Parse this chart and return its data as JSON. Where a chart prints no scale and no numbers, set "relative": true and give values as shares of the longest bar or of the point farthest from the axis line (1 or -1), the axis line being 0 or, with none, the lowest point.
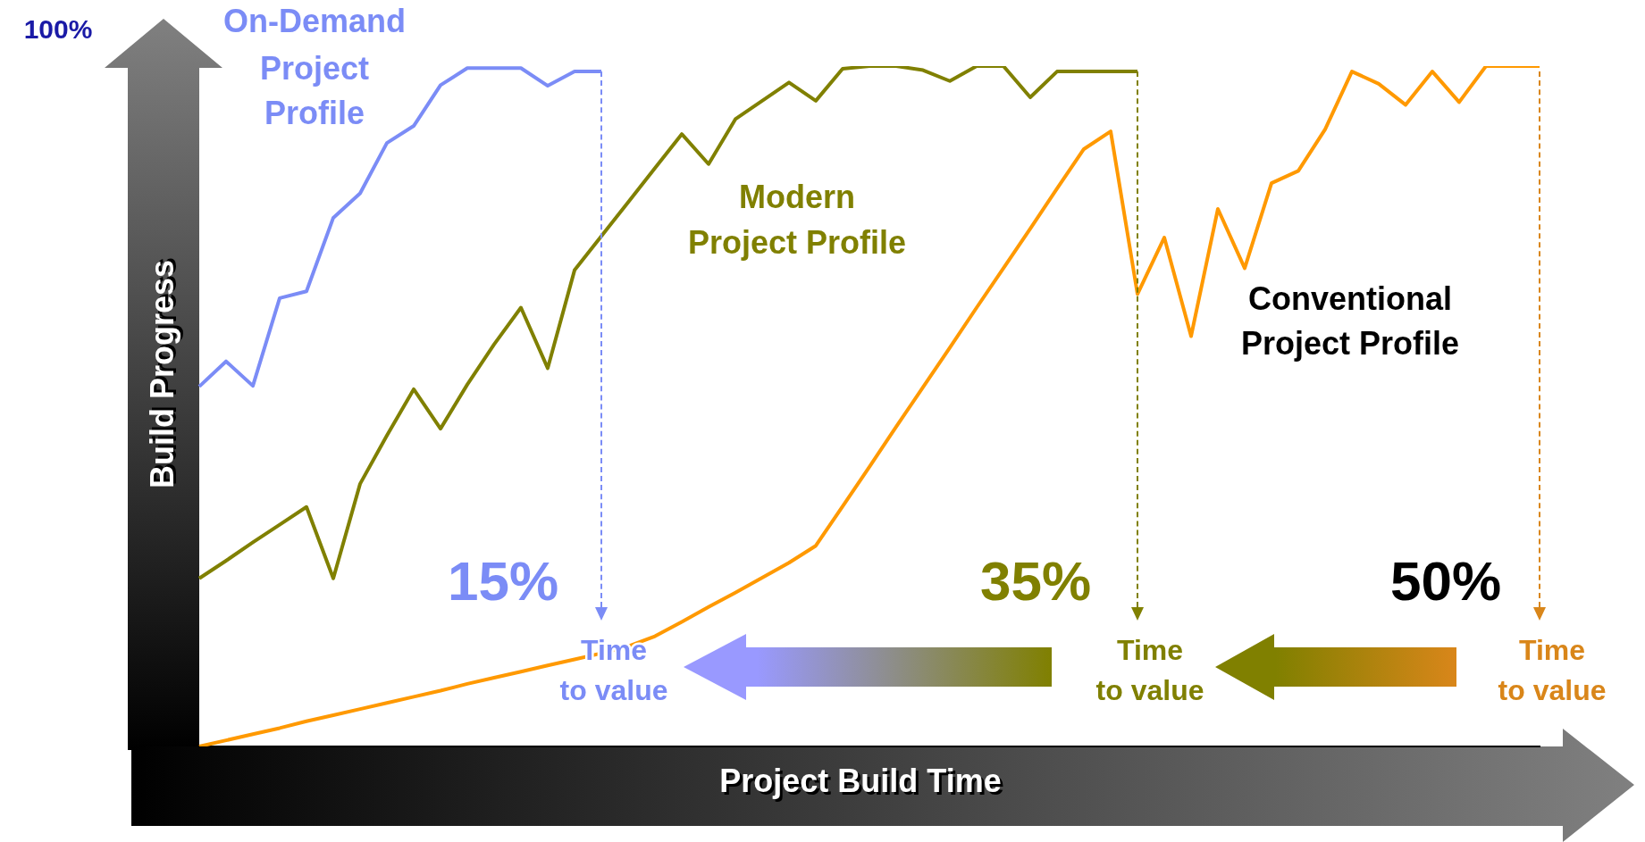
{
  "chart_data": {
    "type": "line",
    "relative": true,
    "xlabel": "Project Build Time",
    "ylabel": "Build Progress",
    "legend": false,
    "marker": "none",
    "line_style": "solid",
    "annotations": [
      "100%",
      "15%",
      "35%",
      "50%",
      "Time to value",
      "Time to value",
      "Time to value"
    ],
    "categories": [
      null,
      null,
      null,
      null,
      null,
      null,
      null,
      null,
      null,
      null,
      null,
      null,
      null,
      null,
      null,
      null,
      null,
      null,
      null,
      null,
      null,
      null,
      null,
      null,
      null,
      null,
      null,
      null,
      null,
      null,
      null,
      null,
      null,
      null,
      null,
      null,
      null,
      null,
      null,
      null,
      null,
      null,
      null,
      null,
      null,
      null,
      null,
      null,
      null,
      null,
      null
    ],
    "series": [
      {
        "name": "On-Demand Project Profile",
        "color": "#7b8cf6",
        "values": [
          0.529,
          0.566,
          0.53,
          0.659,
          0.669,
          0.777,
          0.813,
          0.887,
          0.912,
          0.972,
          0.997,
          0.997,
          0.997,
          0.971,
          0.992,
          0.992,
          null,
          null,
          null,
          null,
          null,
          null,
          null,
          null,
          null,
          null,
          null,
          null,
          null,
          null,
          null,
          null,
          null,
          null,
          null,
          null,
          null,
          null,
          null,
          null,
          null,
          null,
          null,
          null,
          null,
          null,
          null,
          null,
          null,
          null,
          null
        ]
      },
      {
        "name": "Modern Project Profile",
        "color": "#808000",
        "values": [
          0.247,
          0.273,
          0.3,
          0.326,
          0.352,
          0.247,
          0.386,
          0.457,
          0.525,
          0.467,
          0.532,
          0.591,
          0.645,
          0.556,
          0.7,
          0.75,
          0.8,
          0.85,
          0.9,
          0.856,
          0.922,
          0.949,
          0.976,
          0.949,
          0.996,
          1,
          1,
          0.994,
          0.978,
          1,
          1,
          0.954,
          0.992,
          0.992,
          0.992,
          0.992,
          null,
          null,
          null,
          null,
          null,
          null,
          null,
          null,
          null,
          null,
          null,
          null,
          null,
          null,
          null
        ]
      },
      {
        "name": "Conventional Project Profile",
        "color": "#ff9900",
        "values": [
          0,
          0.009,
          0.018,
          0.027,
          0.037,
          0.046,
          0.055,
          0.064,
          0.073,
          0.082,
          0.092,
          0.101,
          0.11,
          0.119,
          0.128,
          0.137,
          0.147,
          0.162,
          0.183,
          0.205,
          0.226,
          0.248,
          0.27,
          0.295,
          0.353,
          0.411,
          0.47,
          0.528,
          0.586,
          0.645,
          0.703,
          0.761,
          0.82,
          0.878,
          0.904,
          0.665,
          0.748,
          0.603,
          0.79,
          0.703,
          0.828,
          0.846,
          0.907,
          0.992,
          0.974,
          0.943,
          0.992,
          0.947,
          1,
          1,
          1
        ]
      }
    ]
  }
}
